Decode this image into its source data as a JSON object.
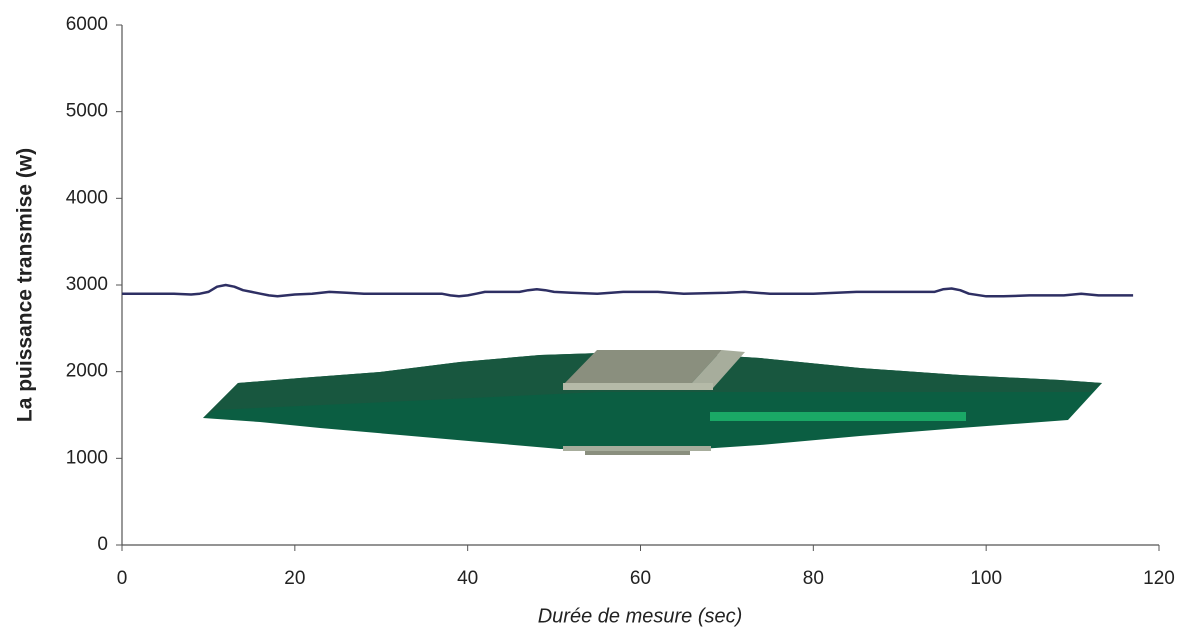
{
  "chart_data": {
    "type": "line",
    "xlabel": "Durée de mesure (sec)",
    "ylabel": "La puissance transmise (w)",
    "x": [
      0,
      2,
      4,
      6,
      8,
      9,
      10,
      11,
      12,
      13,
      14,
      15,
      16,
      17,
      18,
      19,
      20,
      22,
      24,
      26,
      28,
      30,
      35,
      37,
      38,
      39,
      40,
      41,
      42,
      46,
      47,
      48,
      49,
      50,
      52,
      55,
      58,
      62,
      65,
      70,
      72,
      75,
      80,
      85,
      90,
      94,
      95,
      96,
      97,
      98,
      100,
      102,
      105,
      109,
      111,
      113,
      117
    ],
    "values": [
      2900,
      2900,
      2900,
      2900,
      2890,
      2900,
      2920,
      2980,
      3000,
      2980,
      2940,
      2920,
      2900,
      2880,
      2870,
      2880,
      2890,
      2900,
      2920,
      2910,
      2900,
      2900,
      2900,
      2900,
      2880,
      2870,
      2880,
      2900,
      2920,
      2920,
      2940,
      2950,
      2940,
      2920,
      2910,
      2900,
      2920,
      2920,
      2900,
      2910,
      2920,
      2900,
      2900,
      2920,
      2920,
      2920,
      2950,
      2960,
      2940,
      2900,
      2870,
      2870,
      2880,
      2880,
      2900,
      2880,
      2880
    ],
    "color": "#2e2f63",
    "xlim": [
      0,
      120
    ],
    "xticks": [
      0,
      20,
      40,
      60,
      80,
      100,
      120
    ],
    "ylim": [
      0,
      6000
    ],
    "yticks": [
      0,
      1000,
      2000,
      3000,
      4000,
      5000,
      6000
    ],
    "grid": false
  }
}
